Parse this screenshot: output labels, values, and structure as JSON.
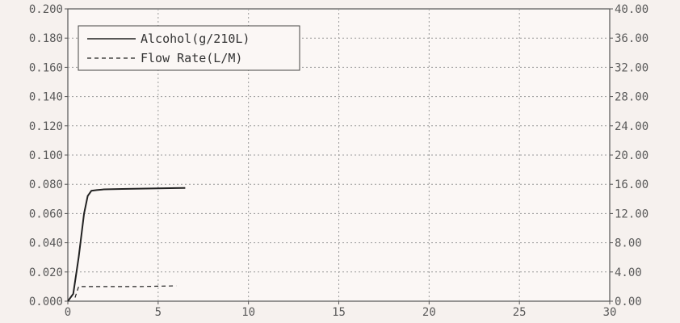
{
  "chart_data": {
    "type": "line",
    "title": "",
    "xlabel": "",
    "ylabel": "",
    "y2label": "",
    "xlim": [
      0,
      30
    ],
    "ylim": [
      0,
      0.2
    ],
    "y2lim": [
      0,
      40
    ],
    "grid": true,
    "legend_position": "top-left",
    "x_ticks": [
      "0",
      "5",
      "10",
      "15",
      "20",
      "25",
      "30"
    ],
    "y_ticks": [
      "0.000",
      "0.020",
      "0.040",
      "0.060",
      "0.080",
      "0.100",
      "0.120",
      "0.140",
      "0.160",
      "0.180",
      "0.200"
    ],
    "y2_ticks": [
      "0.00",
      "4.00",
      "8.00",
      "12.00",
      "16.00",
      "20.00",
      "24.00",
      "28.00",
      "32.00",
      "36.00",
      "40.00"
    ],
    "series": [
      {
        "name": "Alcohol(g/210L)",
        "axis": "left",
        "style": "solid",
        "color": "#222222",
        "x": [
          0,
          0.3,
          0.6,
          0.9,
          1.1,
          1.3,
          1.6,
          2,
          3,
          4,
          5,
          6,
          6.5
        ],
        "y": [
          0,
          0.005,
          0.03,
          0.06,
          0.072,
          0.0755,
          0.076,
          0.0765,
          0.0768,
          0.077,
          0.0772,
          0.0774,
          0.0775
        ]
      },
      {
        "name": "Flow Rate(L/M)",
        "axis": "right",
        "style": "dashed",
        "color": "#222222",
        "x": [
          0.4,
          0.6,
          1,
          2,
          3,
          4,
          5,
          6,
          6
        ],
        "y": [
          0.5,
          2.0,
          2.0,
          2.0,
          2.0,
          2.0,
          2.05,
          2.1,
          2.1
        ]
      }
    ]
  }
}
